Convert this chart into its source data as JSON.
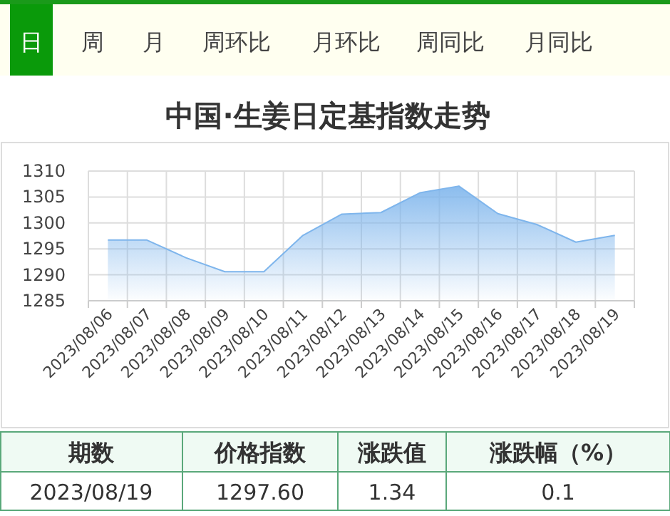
{
  "chart_data": {
    "type": "area",
    "title": "中国·生姜日定基指数走势",
    "categories": [
      "2023/08/06",
      "2023/08/07",
      "2023/08/08",
      "2023/08/09",
      "2023/08/10",
      "2023/08/11",
      "2023/08/12",
      "2023/08/13",
      "2023/08/14",
      "2023/08/15",
      "2023/08/16",
      "2023/08/17",
      "2023/08/18",
      "2023/08/19"
    ],
    "series": [
      {
        "color": "#7eb5ec",
        "values": [
          1296.7,
          1296.7,
          1293.3,
          1290.6,
          1290.6,
          1297.6,
          1301.7,
          1302.0,
          1305.8,
          1307.1,
          1301.8,
          1299.7,
          1296.3,
          1297.6
        ]
      }
    ],
    "ylim": [
      1285,
      1310
    ],
    "yticks": [
      1285,
      1290,
      1295,
      1300,
      1305,
      1310
    ],
    "grid": true,
    "annotations": [
      "日",
      "周",
      "月",
      "周环比",
      "月环比",
      "周同比",
      "月同比",
      "期数",
      "价格指数",
      "涨跌值",
      "涨跌幅（%）",
      "2023/08/19",
      "1297.60",
      "1.34",
      "0.1"
    ]
  }
}
